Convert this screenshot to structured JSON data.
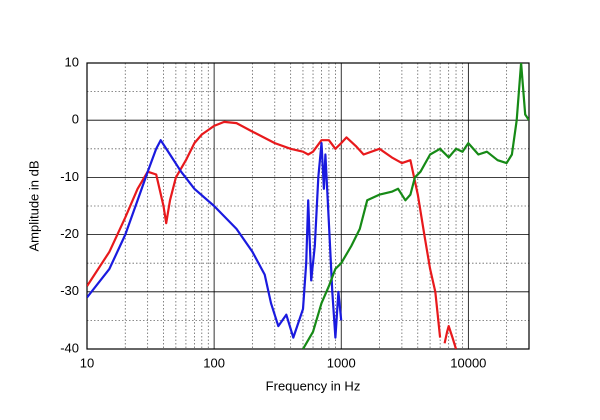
{
  "chart_data": {
    "type": "line",
    "xlabel": "Frequency in Hz",
    "ylabel": "Amplitude in dB",
    "xscale": "log",
    "xlim": [
      10,
      30000
    ],
    "ylim": [
      -40,
      10
    ],
    "xticks": [
      10,
      100,
      1000,
      10000
    ],
    "minor_xticks": [
      20,
      30,
      40,
      50,
      60,
      70,
      80,
      90,
      200,
      300,
      400,
      500,
      600,
      700,
      800,
      900,
      2000,
      3000,
      4000,
      5000,
      6000,
      7000,
      8000,
      9000,
      20000
    ],
    "yticks": [
      -40,
      -30,
      -20,
      -10,
      0,
      10
    ],
    "minor_yticks": [
      -35,
      -25,
      -15,
      -5,
      5
    ],
    "grid": true,
    "series": [
      {
        "color": "#e8191c",
        "x": [
          10,
          15,
          20,
          25,
          30,
          35,
          40,
          42,
          45,
          50,
          60,
          70,
          80,
          100,
          120,
          150,
          200,
          300,
          400,
          500,
          550,
          600,
          700,
          800,
          900,
          1000,
          1100,
          1300,
          1500,
          2000,
          2500,
          3000,
          3500,
          4000,
          4500,
          5000,
          5500,
          6000,
          6300,
          6500,
          6800,
          7000,
          7500,
          8000
        ],
        "values": [
          -29,
          -23,
          -17,
          -12,
          -9,
          -9.5,
          -15,
          -18,
          -14,
          -10,
          -7,
          -4,
          -2.5,
          -1,
          -0.3,
          -0.5,
          -2,
          -4,
          -5,
          -5.5,
          -6,
          -5.5,
          -3.5,
          -3.5,
          -5,
          -4,
          -3,
          -4.5,
          -6,
          -5,
          -6.5,
          -7.5,
          -7,
          -13,
          -20,
          -26,
          -30,
          -38,
          null,
          -39,
          -37,
          -36,
          -38,
          -40
        ]
      },
      {
        "color": "#1a1adf",
        "x": [
          10,
          15,
          20,
          25,
          30,
          35,
          38,
          45,
          55,
          70,
          100,
          150,
          200,
          250,
          280,
          320,
          370,
          420,
          450,
          500,
          530,
          550,
          580,
          620,
          660,
          700,
          730,
          750,
          800,
          850,
          900,
          950,
          1000
        ],
        "values": [
          -31,
          -26,
          -20,
          -14,
          -9,
          -5,
          -3.5,
          -6,
          -9,
          -12,
          -15,
          -19,
          -23,
          -27,
          -32,
          -36,
          -34,
          -38,
          -36,
          -33,
          -25,
          -14,
          -28,
          -22,
          -10,
          -4,
          -12,
          -6,
          -18,
          -30,
          -38,
          -30,
          -35
        ]
      },
      {
        "color": "#168a16",
        "x": [
          500,
          600,
          700,
          800,
          900,
          1000,
          1200,
          1400,
          1600,
          2000,
          2500,
          2800,
          3200,
          3500,
          3800,
          4200,
          5000,
          6000,
          7000,
          8000,
          9000,
          10000,
          12000,
          14000,
          17000,
          20000,
          22000,
          24000,
          26000,
          28000,
          30000
        ],
        "values": [
          -40,
          -37,
          -32,
          -29,
          -26,
          -25,
          -22,
          -19,
          -14,
          -13,
          -12.5,
          -12,
          -14,
          -13,
          -10,
          -9,
          -6,
          -5,
          -6.5,
          -5,
          -5.5,
          -4,
          -6,
          -5.5,
          -7,
          -7.5,
          -6,
          0,
          10,
          1,
          0
        ]
      }
    ]
  }
}
